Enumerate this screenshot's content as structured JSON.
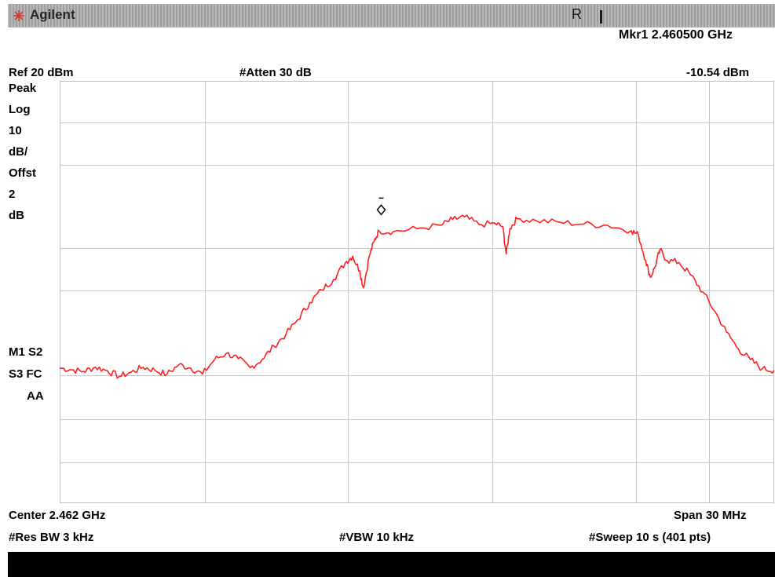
{
  "header": {
    "brand": "Agilent",
    "status": "R",
    "marker_line": "Mkr1  2.460500 GHz",
    "ref_level": "Ref 20 dBm",
    "attenuation": "#Atten 30 dB",
    "marker_amplitude": "-10.54 dBm"
  },
  "left_panel": {
    "detector": "Peak",
    "scale_type": "Log",
    "scale_value": "10",
    "scale_unit": "dB/",
    "offset_label": "Offst",
    "offset_value": "2",
    "offset_unit": "dB",
    "marker_status": "M1  S2",
    "sweep_status": "S3  FC",
    "aa_label": "AA"
  },
  "footer": {
    "center": "Center 2.462 GHz",
    "span": "Span 30 MHz",
    "rbw": "#Res BW 3 kHz",
    "vbw": "#VBW 10 kHz",
    "sweep": "#Sweep 10 s (401 pts)"
  },
  "colors": {
    "trace": "#ff2020",
    "grid": "#c8c8c8",
    "titlebar": "#a8a8a8",
    "marker": "#000000"
  },
  "chart_data": {
    "type": "line",
    "x_unit": "MHz",
    "xlim": [
      2447.0,
      2477.0
    ],
    "y_unit": "dBm",
    "ylim": [
      -80,
      20
    ],
    "grid": true,
    "series": [
      {
        "points": [
          [
            2447.0,
            -48.0
          ],
          [
            2447.5,
            -48.4
          ],
          [
            2448.0,
            -48.8
          ],
          [
            2448.5,
            -47.8
          ],
          [
            2449.0,
            -48.6
          ],
          [
            2449.5,
            -50.0
          ],
          [
            2450.0,
            -49.0
          ],
          [
            2450.5,
            -47.8
          ],
          [
            2451.0,
            -48.5
          ],
          [
            2451.5,
            -49.5
          ],
          [
            2452.0,
            -47.2
          ],
          [
            2452.5,
            -48.0
          ],
          [
            2453.0,
            -49.4
          ],
          [
            2453.5,
            -46.0
          ],
          [
            2454.0,
            -44.5
          ],
          [
            2454.5,
            -45.8
          ],
          [
            2455.0,
            -47.9
          ],
          [
            2455.5,
            -46.0
          ],
          [
            2456.0,
            -42.8
          ],
          [
            2456.5,
            -40.0
          ],
          [
            2457.0,
            -36.5
          ],
          [
            2457.5,
            -32.5
          ],
          [
            2458.0,
            -29.5
          ],
          [
            2458.5,
            -27.0
          ],
          [
            2459.0,
            -23.0
          ],
          [
            2459.3,
            -21.5
          ],
          [
            2459.6,
            -25.0
          ],
          [
            2459.75,
            -29.0
          ],
          [
            2460.0,
            -21.5
          ],
          [
            2460.2,
            -18.0
          ],
          [
            2460.4,
            -15.5
          ],
          [
            2461.0,
            -15.7
          ],
          [
            2462.0,
            -15.0
          ],
          [
            2463.0,
            -14.2
          ],
          [
            2463.5,
            -12.8
          ],
          [
            2464.0,
            -12.2
          ],
          [
            2464.6,
            -14.0
          ],
          [
            2465.3,
            -13.8
          ],
          [
            2465.6,
            -14.5
          ],
          [
            2465.75,
            -21.0
          ],
          [
            2465.9,
            -15.0
          ],
          [
            2466.2,
            -12.6
          ],
          [
            2467.0,
            -13.1
          ],
          [
            2468.0,
            -13.5
          ],
          [
            2469.0,
            -13.9
          ],
          [
            2470.0,
            -14.2
          ],
          [
            2471.0,
            -15.5
          ],
          [
            2471.3,
            -16.5
          ],
          [
            2471.6,
            -22.5
          ],
          [
            2471.8,
            -26.5
          ],
          [
            2472.0,
            -24.0
          ],
          [
            2472.2,
            -20.0
          ],
          [
            2472.5,
            -22.5
          ],
          [
            2473.0,
            -23.0
          ],
          [
            2473.5,
            -26.0
          ],
          [
            2474.0,
            -30.0
          ],
          [
            2474.5,
            -34.5
          ],
          [
            2475.0,
            -39.5
          ],
          [
            2475.5,
            -43.5
          ],
          [
            2476.0,
            -46.0
          ],
          [
            2476.5,
            -48.2
          ],
          [
            2477.0,
            -48.5
          ]
        ],
        "color": "#ff2020"
      }
    ],
    "marker": {
      "x": 2460.5,
      "y": -10.54,
      "shape": "diamond"
    }
  }
}
